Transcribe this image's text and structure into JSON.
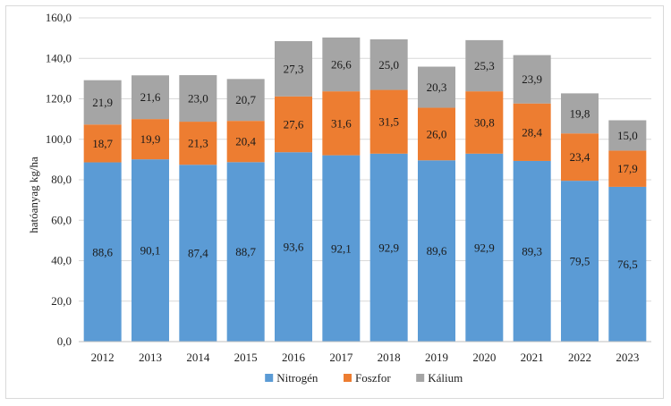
{
  "chart_data": {
    "type": "bar",
    "stacked": true,
    "categories": [
      "2012",
      "2013",
      "2014",
      "2015",
      "2016",
      "2017",
      "2018",
      "2019",
      "2020",
      "2021",
      "2022",
      "2023"
    ],
    "series": [
      {
        "name": "Nitrogén",
        "color": "#5b9bd5",
        "values": [
          88.6,
          90.1,
          87.4,
          88.7,
          93.6,
          92.1,
          92.9,
          89.6,
          92.9,
          89.3,
          79.5,
          76.5
        ],
        "labels": [
          "88,6",
          "90,1",
          "87,4",
          "88,7",
          "93,6",
          "92,1",
          "92,9",
          "89,6",
          "92,9",
          "89,3",
          "79,5",
          "76,5"
        ]
      },
      {
        "name": "Foszfor",
        "color": "#ed7d31",
        "values": [
          18.7,
          19.9,
          21.3,
          20.4,
          27.6,
          31.6,
          31.5,
          26.0,
          30.8,
          28.4,
          23.4,
          17.9
        ],
        "labels": [
          "18,7",
          "19,9",
          "21,3",
          "20,4",
          "27,6",
          "31,6",
          "31,5",
          "26,0",
          "30,8",
          "28,4",
          "23,4",
          "17,9"
        ]
      },
      {
        "name": "Kálium",
        "color": "#a5a5a5",
        "values": [
          21.9,
          21.6,
          23.0,
          20.7,
          27.3,
          26.6,
          25.0,
          20.3,
          25.3,
          23.9,
          19.8,
          15.0
        ],
        "labels": [
          "21,9",
          "21,6",
          "23,0",
          "20,7",
          "27,3",
          "26,6",
          "25,0",
          "20,3",
          "25,3",
          "23,9",
          "19,8",
          "15,0"
        ]
      }
    ],
    "ylabel": "hatóanyag  kg/ha",
    "ylim": [
      0,
      160
    ],
    "yticks": [
      "0,0",
      "20,0",
      "40,0",
      "60,0",
      "80,0",
      "100,0",
      "120,0",
      "140,0",
      "160,0"
    ],
    "grid": true,
    "legend": "bottom"
  }
}
